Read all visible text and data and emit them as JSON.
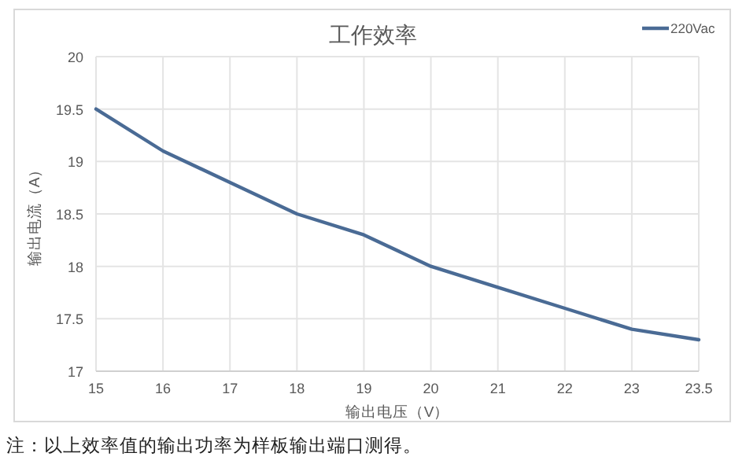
{
  "chart_data": {
    "type": "line",
    "title": "工作效率",
    "xlabel": "输出电压（V）",
    "ylabel": "输出电流（A）",
    "categories": [
      "15",
      "16",
      "17",
      "18",
      "19",
      "20",
      "21",
      "22",
      "23",
      "23.5"
    ],
    "series": [
      {
        "name": "220Vac",
        "color": "#4a6b95",
        "values": [
          19.5,
          19.1,
          18.8,
          18.5,
          18.3,
          18.0,
          17.8,
          17.6,
          17.4,
          17.3
        ]
      }
    ],
    "ylim": [
      17,
      20
    ],
    "yticks": [
      17,
      17.5,
      18,
      18.5,
      19,
      19.5,
      20
    ],
    "grid": true,
    "legend": "top right",
    "marker": "none",
    "line_style": "solid",
    "annotations": [
      "注：以上效率值的输出功率为样板输出端口测得。"
    ]
  }
}
